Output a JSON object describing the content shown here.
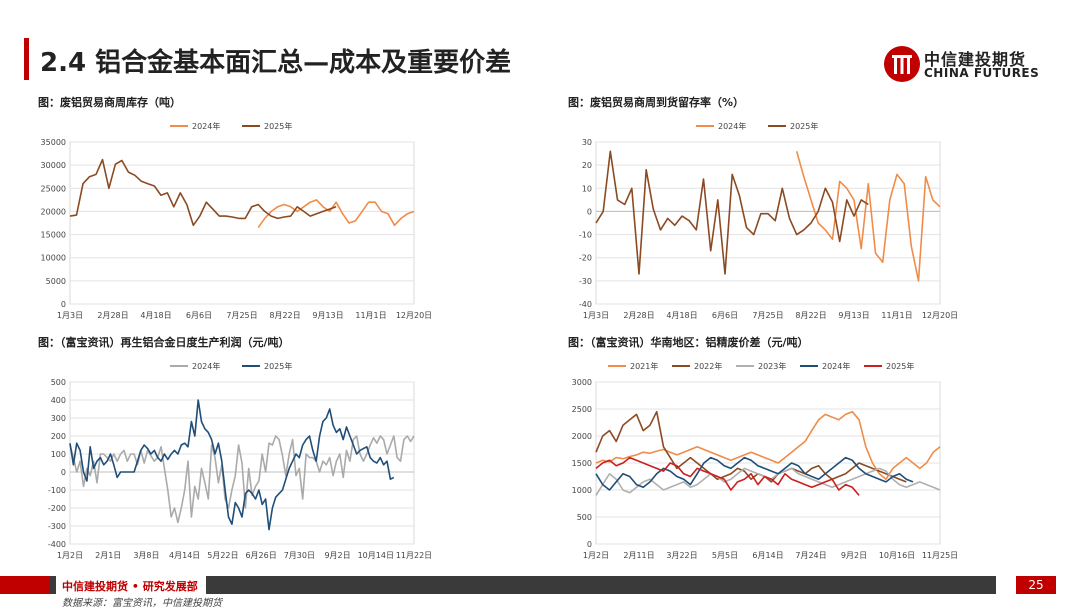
{
  "page": {
    "title": "2.4 铝合金基本面汇总—成本及重要价差",
    "logo_cn": "中信建投期货",
    "logo_en": "CHINA FUTURES",
    "footer": "中信建投期货 • 研究发展部",
    "page_number": "25",
    "source": "数据来源：富宝资讯，中信建投期货"
  },
  "chart_data": [
    {
      "id": "c1",
      "type": "line",
      "title": "图：废铝贸易商周库存（吨）",
      "x_labels": [
        "1月3日",
        "2月28日",
        "4月18日",
        "6月6日",
        "7月25日",
        "8月22日",
        "9月13日",
        "11月1日",
        "12月20日"
      ],
      "ylim": [
        0,
        35000
      ],
      "yticks": [
        0,
        5000,
        10000,
        15000,
        20000,
        25000,
        30000,
        35000
      ],
      "legend": "top",
      "grid": true,
      "series": [
        {
          "name": "2024年",
          "color": "#f08c4a",
          "start": 29,
          "values": [
            16500,
            18500,
            20000,
            21000,
            21500,
            21000,
            20000,
            21000,
            22000,
            22500,
            21000,
            20000,
            22000,
            19500,
            17500,
            18000,
            20000,
            22000,
            22000,
            20000,
            19500,
            17000,
            18500,
            19500,
            20000
          ]
        },
        {
          "name": "2025年",
          "color": "#8b4a22",
          "start": 0,
          "values": [
            19000,
            19200,
            26000,
            27500,
            28000,
            31200,
            25000,
            30200,
            31000,
            28500,
            27800,
            26500,
            26000,
            25500,
            23500,
            24000,
            21000,
            24000,
            21500,
            17000,
            19000,
            22000,
            20500,
            19000,
            19000,
            18800,
            18500,
            18500,
            21000,
            21500,
            20000,
            19000,
            18500,
            18800,
            19000,
            21000,
            20000,
            19000,
            19500,
            20000,
            20500,
            21000
          ]
        }
      ]
    },
    {
      "id": "c2",
      "type": "line",
      "title": "图：废铝贸易商周到货留存率（%）",
      "x_labels": [
        "1月3日",
        "2月28日",
        "4月18日",
        "6月6日",
        "7月25日",
        "8月22日",
        "9月13日",
        "11月1日",
        "12月20日"
      ],
      "ylim": [
        -40,
        30
      ],
      "yticks": [
        -40,
        -30,
        -20,
        -10,
        0,
        10,
        20,
        30
      ],
      "legend": "top",
      "grid": true,
      "series": [
        {
          "name": "2024年",
          "color": "#f08c4a",
          "start": 28,
          "values": [
            26,
            15,
            5,
            -5,
            -8,
            -12,
            13,
            10,
            5,
            -16,
            12,
            -18,
            -22,
            5,
            16,
            12,
            -15,
            -30,
            15,
            5,
            2
          ]
        },
        {
          "name": "2025年",
          "color": "#8b4a22",
          "start": 0,
          "values": [
            -5,
            0,
            26,
            5,
            3,
            10,
            -27,
            18,
            1,
            -8,
            -3,
            -6,
            -2,
            -4,
            -8,
            14,
            -17,
            5,
            -27,
            16,
            7,
            -7,
            -10,
            -1,
            -1,
            -4,
            10,
            -3,
            -10,
            -8,
            -5,
            0,
            10,
            4,
            -13,
            5,
            -2,
            5,
            3
          ]
        }
      ]
    },
    {
      "id": "c3",
      "type": "line",
      "title": "图：（富宝资讯）再生铝合金日度生产利润（元/吨）",
      "x_labels": [
        "1月2日",
        "2月1日",
        "3月8日",
        "4月14日",
        "5月22日",
        "6月26日",
        "7月30日",
        "9月2日",
        "10月14日",
        "11月22日"
      ],
      "ylim": [
        -400,
        500
      ],
      "yticks": [
        -400,
        -300,
        -200,
        -100,
        0,
        100,
        200,
        300,
        400,
        500
      ],
      "legend": "top",
      "grid": true,
      "series": [
        {
          "name": "2024年",
          "color": "#aaaaaa",
          "start": 0,
          "values": [
            150,
            80,
            0,
            60,
            -80,
            20,
            -20,
            60,
            -60,
            100,
            100,
            80,
            60,
            100,
            60,
            100,
            120,
            60,
            100,
            100,
            40,
            120,
            50,
            120,
            90,
            60,
            80,
            140,
            20,
            -100,
            -250,
            -200,
            -280,
            -200,
            -100,
            60,
            -250,
            -80,
            -150,
            20,
            -60,
            -150,
            150,
            80,
            -60,
            40,
            -150,
            -200,
            -100,
            -20,
            150,
            50,
            -200,
            20,
            -130,
            -80,
            -50,
            100,
            0,
            160,
            150,
            200,
            180,
            90,
            -20,
            100,
            180,
            -20,
            20,
            -150,
            100,
            80,
            80,
            60,
            0,
            60,
            40,
            80,
            -20,
            60,
            100,
            -30,
            120,
            60,
            180,
            200,
            100,
            60,
            100,
            150,
            190,
            160,
            200,
            180,
            100,
            150,
            200,
            80,
            60,
            180,
            200,
            170,
            200
          ]
        },
        {
          "name": "2025年",
          "color": "#1f4e79",
          "start": 0,
          "values": [
            160,
            40,
            160,
            120,
            0,
            -50,
            140,
            20,
            60,
            80,
            40,
            60,
            100,
            40,
            -30,
            0,
            0,
            0,
            0,
            0,
            60,
            120,
            150,
            130,
            100,
            120,
            80,
            60,
            100,
            70,
            100,
            120,
            100,
            150,
            160,
            140,
            280,
            200,
            400,
            280,
            240,
            220,
            180,
            100,
            160,
            60,
            -100,
            -250,
            -290,
            -170,
            -200,
            -250,
            -120,
            -100,
            -120,
            -150,
            -100,
            -180,
            -150,
            -320,
            -200,
            -140,
            -120,
            -100,
            -40,
            20,
            60,
            100,
            80,
            150,
            180,
            200,
            120,
            60,
            200,
            280,
            300,
            350,
            260,
            220,
            240,
            180,
            250,
            200,
            150,
            100,
            120,
            130,
            140,
            80,
            60,
            50,
            80,
            40,
            60,
            -40,
            -30
          ]
        }
      ]
    },
    {
      "id": "c4",
      "type": "line",
      "title": "图：（富宝资讯）华南地区：铝精废价差（元/吨）",
      "x_labels": [
        "1月2日",
        "2月11日",
        "3月22日",
        "5月5日",
        "6月14日",
        "7月24日",
        "9月2日",
        "10月16日",
        "11月25日"
      ],
      "ylim": [
        0,
        3000
      ],
      "yticks": [
        0,
        500,
        1000,
        1500,
        2000,
        2500,
        3000
      ],
      "legend": "top",
      "grid": true,
      "series": [
        {
          "name": "2021年",
          "color": "#f08c4a",
          "start": 0,
          "values": [
            1500,
            1550,
            1520,
            1600,
            1580,
            1620,
            1650,
            1700,
            1680,
            1720,
            1750,
            1700,
            1650,
            1700,
            1750,
            1800,
            1750,
            1700,
            1650,
            1600,
            1550,
            1600,
            1650,
            1700,
            1650,
            1600,
            1550,
            1500,
            1600,
            1700,
            1800,
            1900,
            2100,
            2300,
            2400,
            2350,
            2300,
            2400,
            2450,
            2300,
            1800,
            1500,
            1300,
            1200,
            1400,
            1500,
            1600,
            1500,
            1400,
            1500,
            1700,
            1800
          ]
        },
        {
          "name": "2022年",
          "color": "#8b4a22",
          "start": 0,
          "values": [
            1700,
            2000,
            2100,
            1900,
            2200,
            2300,
            2400,
            2100,
            2200,
            2450,
            1800,
            1600,
            1400,
            1500,
            1600,
            1500,
            1400,
            1300,
            1200,
            1250,
            1300,
            1400,
            1350,
            1200,
            1300,
            1250,
            1150,
            1300,
            1350,
            1400,
            1350,
            1300,
            1400,
            1450,
            1300,
            1200,
            1250,
            1300,
            1400,
            1500,
            1450,
            1400,
            1350,
            1300,
            1250,
            1200,
            1150
          ]
        },
        {
          "name": "2023年",
          "color": "#b0b0b0",
          "start": 0,
          "values": [
            900,
            1100,
            1300,
            1200,
            1000,
            950,
            1050,
            1150,
            1200,
            1100,
            1000,
            1050,
            1100,
            1150,
            1050,
            1100,
            1200,
            1300,
            1250,
            1150,
            1200,
            1300,
            1400,
            1350,
            1300,
            1250,
            1200,
            1300,
            1350,
            1400,
            1300,
            1250,
            1200,
            1150,
            1100,
            1050,
            1100,
            1150,
            1200,
            1250,
            1300,
            1350,
            1400,
            1350,
            1200,
            1100,
            1050,
            1100,
            1150,
            1100,
            1050,
            1000
          ]
        },
        {
          "name": "2024年",
          "color": "#1f4e79",
          "start": 0,
          "values": [
            1300,
            1100,
            1000,
            1150,
            1300,
            1250,
            1100,
            1050,
            1150,
            1300,
            1400,
            1350,
            1250,
            1200,
            1100,
            1300,
            1500,
            1600,
            1550,
            1450,
            1400,
            1500,
            1600,
            1550,
            1450,
            1400,
            1350,
            1300,
            1400,
            1500,
            1450,
            1300,
            1250,
            1200,
            1300,
            1400,
            1500,
            1600,
            1550,
            1400,
            1300,
            1250,
            1200,
            1150,
            1250,
            1300,
            1200,
            1150
          ]
        },
        {
          "name": "2025年",
          "color": "#cc1f1f",
          "start": 0,
          "values": [
            1400,
            1500,
            1550,
            1450,
            1500,
            1600,
            1550,
            1500,
            1450,
            1400,
            1350,
            1500,
            1450,
            1300,
            1250,
            1400,
            1350,
            1300,
            1250,
            1200,
            1000,
            1150,
            1200,
            1300,
            1100,
            1250,
            1200,
            1100,
            1300,
            1200,
            1150,
            1100,
            1050,
            1100,
            1150,
            1200,
            1000,
            1100,
            1050,
            900
          ]
        }
      ]
    }
  ]
}
